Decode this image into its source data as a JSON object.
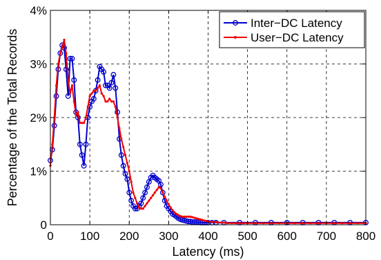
{
  "chart_data": {
    "type": "line",
    "xlabel": "Latency (ms)",
    "ylabel": "Percentage of the Total Records",
    "xlim": [
      0,
      800
    ],
    "ylim": [
      0,
      4
    ],
    "xticks": [
      "0",
      "100",
      "200",
      "300",
      "400",
      "500",
      "600",
      "700",
      "800"
    ],
    "yticks": [
      "0",
      "1%",
      "2%",
      "3%",
      "4%"
    ],
    "grid": true,
    "legend_position": "top-right",
    "series": [
      {
        "name": "Inter−DC Latency",
        "color": "#0000cc",
        "marker": "circle",
        "x": [
          0,
          5,
          10,
          15,
          20,
          25,
          30,
          35,
          40,
          45,
          50,
          55,
          60,
          65,
          70,
          75,
          80,
          85,
          90,
          95,
          100,
          105,
          110,
          115,
          120,
          125,
          130,
          135,
          140,
          145,
          150,
          155,
          160,
          165,
          170,
          175,
          180,
          185,
          190,
          195,
          200,
          205,
          210,
          215,
          220,
          225,
          230,
          235,
          240,
          245,
          250,
          255,
          260,
          265,
          270,
          275,
          280,
          285,
          290,
          295,
          300,
          305,
          310,
          315,
          320,
          325,
          330,
          335,
          340,
          345,
          350,
          355,
          360,
          365,
          370,
          375,
          380,
          385,
          390,
          395,
          400,
          410,
          420,
          430,
          440,
          450,
          460,
          470,
          480,
          490,
          500,
          520,
          540,
          560,
          580,
          600,
          620,
          640,
          660,
          680,
          700,
          720,
          740,
          760,
          780,
          800
        ],
        "y": [
          1.2,
          1.4,
          1.85,
          2.4,
          2.9,
          3.2,
          3.35,
          3.3,
          2.9,
          2.4,
          3.1,
          3.1,
          2.7,
          2.1,
          2.0,
          1.5,
          1.3,
          1.1,
          1.5,
          2.0,
          2.2,
          2.3,
          2.35,
          2.5,
          2.7,
          2.95,
          2.9,
          2.85,
          2.6,
          2.6,
          2.55,
          2.65,
          2.8,
          2.55,
          2.1,
          1.6,
          1.3,
          1.1,
          0.95,
          0.85,
          0.6,
          0.45,
          0.35,
          0.3,
          0.3,
          0.35,
          0.4,
          0.5,
          0.6,
          0.7,
          0.8,
          0.88,
          0.92,
          0.88,
          0.85,
          0.82,
          0.75,
          0.6,
          0.45,
          0.35,
          0.3,
          0.25,
          0.2,
          0.18,
          0.15,
          0.12,
          0.1,
          0.09,
          0.08,
          0.07,
          0.06,
          0.06,
          0.05,
          0.05,
          0.05,
          0.05,
          0.04,
          0.04,
          0.04,
          0.04,
          0.04,
          0.04,
          0.04,
          0.04,
          0.04,
          0.04,
          0.04,
          0.04,
          0.04,
          0.04,
          0.04,
          0.04,
          0.04,
          0.04,
          0.04,
          0.04,
          0.04,
          0.04,
          0.04,
          0.04,
          0.04,
          0.04,
          0.04,
          0.04,
          0.04,
          0.04
        ]
      },
      {
        "name": "User−DC Latency",
        "color": "#ee0000",
        "marker": "dot",
        "x": [
          0,
          5,
          10,
          15,
          20,
          25,
          30,
          35,
          40,
          45,
          50,
          55,
          60,
          65,
          70,
          75,
          80,
          85,
          90,
          95,
          100,
          105,
          110,
          115,
          120,
          125,
          130,
          135,
          140,
          145,
          150,
          155,
          160,
          165,
          170,
          175,
          180,
          185,
          190,
          195,
          200,
          205,
          210,
          215,
          220,
          225,
          230,
          235,
          240,
          245,
          250,
          255,
          260,
          265,
          270,
          275,
          280,
          285,
          290,
          295,
          300,
          305,
          310,
          315,
          320,
          325,
          330,
          335,
          340,
          345,
          350,
          355,
          360,
          365,
          370,
          375,
          380,
          385,
          390,
          395,
          400,
          410,
          420,
          430,
          440,
          450,
          460,
          470,
          480,
          490,
          500,
          520,
          540,
          560,
          580,
          600,
          620,
          640,
          660,
          680,
          700,
          720,
          740,
          760,
          780,
          800
        ],
        "y": [
          1.1,
          1.5,
          2.0,
          2.6,
          3.0,
          3.2,
          3.3,
          3.45,
          3.2,
          2.7,
          2.45,
          2.6,
          2.3,
          2.05,
          2.1,
          1.9,
          1.9,
          1.9,
          2.0,
          2.2,
          2.4,
          2.45,
          2.5,
          2.5,
          2.55,
          2.6,
          2.45,
          2.4,
          2.3,
          2.3,
          2.35,
          2.3,
          2.3,
          2.2,
          2.0,
          1.8,
          1.6,
          1.45,
          1.3,
          1.15,
          1.0,
          0.8,
          0.6,
          0.5,
          0.4,
          0.32,
          0.3,
          0.3,
          0.35,
          0.4,
          0.45,
          0.5,
          0.55,
          0.6,
          0.65,
          0.7,
          0.68,
          0.6,
          0.52,
          0.45,
          0.38,
          0.32,
          0.27,
          0.23,
          0.2,
          0.18,
          0.16,
          0.15,
          0.15,
          0.15,
          0.15,
          0.15,
          0.14,
          0.13,
          0.12,
          0.11,
          0.1,
          0.09,
          0.08,
          0.07,
          0.06,
          0.05,
          0.05,
          0.04,
          0.04,
          0.03,
          0.03,
          0.03,
          0.03,
          0.03,
          0.03,
          0.03,
          0.03,
          0.03,
          0.03,
          0.03,
          0.03,
          0.03,
          0.03,
          0.03,
          0.03,
          0.03,
          0.03,
          0.03,
          0.03,
          0.03
        ]
      }
    ]
  }
}
